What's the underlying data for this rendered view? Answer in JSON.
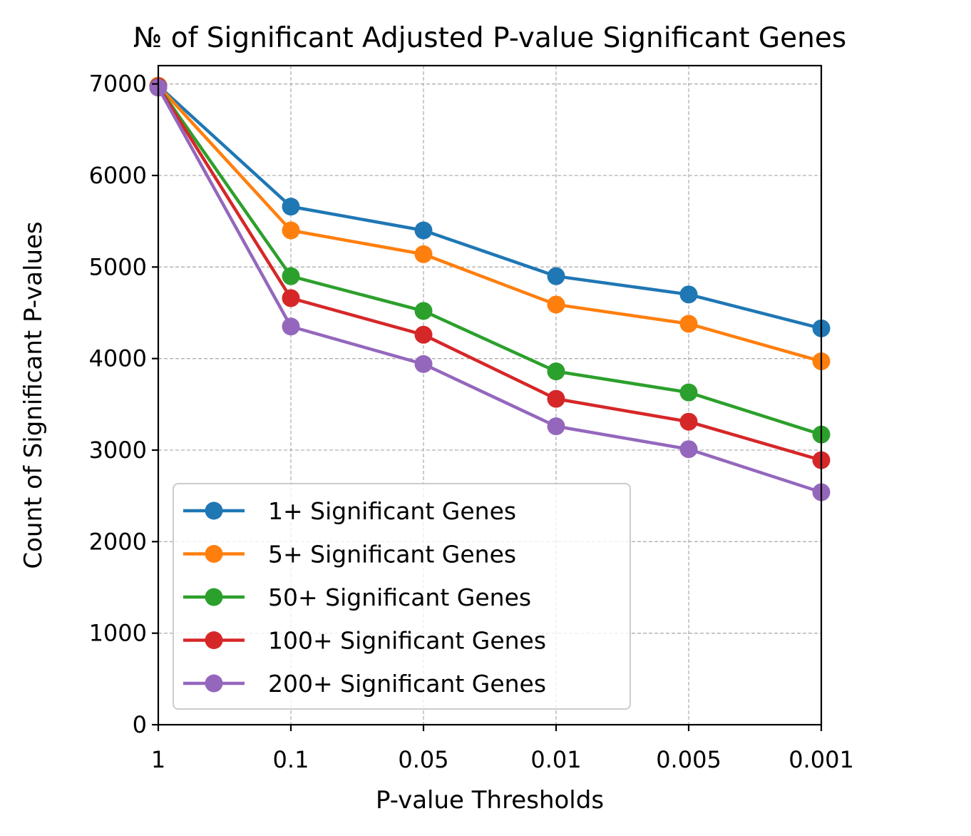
{
  "chart_data": {
    "type": "line",
    "title": "№ of Significant Adjusted P-value Significant Genes",
    "xlabel": "P-value Thresholds",
    "ylabel": "Count of Significant P-values",
    "categories": [
      "1",
      "0.1",
      "0.05",
      "0.01",
      "0.005",
      "0.001"
    ],
    "y_ticks": [
      "0",
      "1000",
      "2000",
      "3000",
      "4000",
      "5000",
      "6000",
      "7000"
    ],
    "ylim": [
      0,
      7200
    ],
    "grid": true,
    "legend_position": "lower-left",
    "series": [
      {
        "name": "1+ Significant Genes",
        "color": "#1f77b4",
        "values": [
          6980,
          5660,
          5400,
          4900,
          4700,
          4330
        ]
      },
      {
        "name": "5+ Significant Genes",
        "color": "#ff7f0e",
        "values": [
          6980,
          5400,
          5140,
          4590,
          4380,
          3970
        ]
      },
      {
        "name": "50+ Significant Genes",
        "color": "#2ca02c",
        "values": [
          6970,
          4900,
          4520,
          3860,
          3630,
          3170
        ]
      },
      {
        "name": "100+ Significant Genes",
        "color": "#d62728",
        "values": [
          6970,
          4660,
          4260,
          3560,
          3310,
          2890
        ]
      },
      {
        "name": "200+ Significant Genes",
        "color": "#9467bd",
        "values": [
          6960,
          4350,
          3940,
          3260,
          3010,
          2540
        ]
      }
    ]
  }
}
